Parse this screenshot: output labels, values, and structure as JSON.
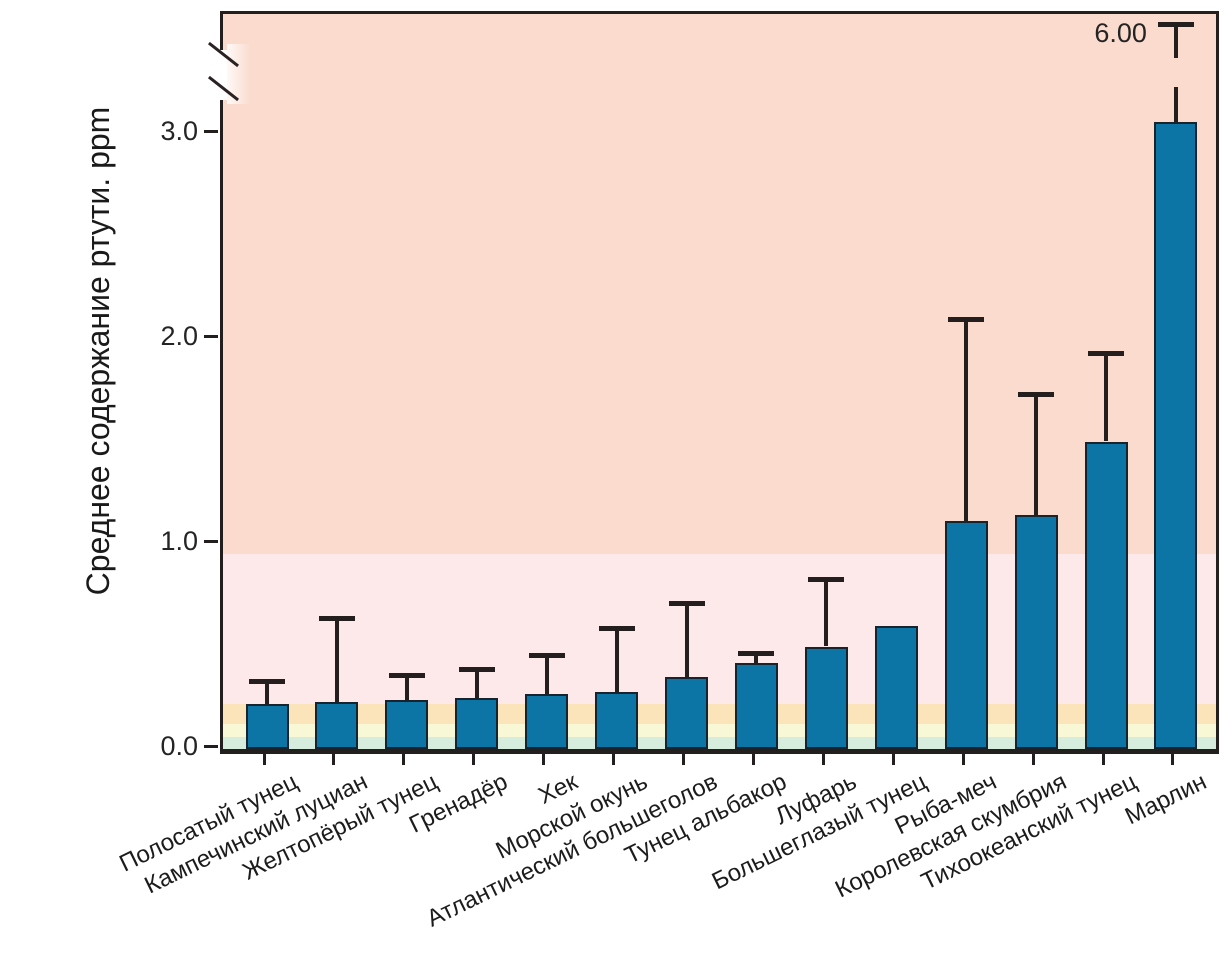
{
  "chart_data": {
    "type": "bar",
    "title": "",
    "xlabel": "",
    "ylabel": "Среднее содержание ртути. ppm",
    "unit": "ppm",
    "ylim": [
      0,
      3.3
    ],
    "ytick_values": [
      0.0,
      1.0,
      2.0,
      3.0
    ],
    "ytick_labels": [
      "0.0",
      "1.0",
      "2.0",
      "3.0"
    ],
    "grid": false,
    "legend": "none",
    "axis_break": {
      "present": true,
      "broken_series": "Марлин",
      "broken_series_index": 13,
      "top_value": 6.0,
      "top_value_label": "6.00"
    },
    "categories": [
      "Полосатый тунец",
      "Кампечинский луциан",
      "Желтопёрый тунец",
      "Гренадёр",
      "Хек",
      "Морской окунь",
      "Атлантический большеголов",
      "Тунец альбакор",
      "Луфарь",
      "Большеглазый тунец",
      "Рыба-меч",
      "Королевская скумбрия",
      "Тихоокеанский тунец",
      "Марлин"
    ],
    "values": [
      0.22,
      0.23,
      0.24,
      0.25,
      0.27,
      0.28,
      0.35,
      0.42,
      0.5,
      0.6,
      1.11,
      1.14,
      1.5,
      3.06
    ],
    "error_upper": [
      0.33,
      0.64,
      0.36,
      0.39,
      0.46,
      0.59,
      0.71,
      0.47,
      0.83,
      null,
      2.1,
      1.73,
      1.93,
      6.0
    ],
    "colors": {
      "bar_fill": "#0d75a6",
      "bar_edge": "#17242e",
      "error_bar": "#241e1e",
      "frame": "#241f1f",
      "text": "#1c1c1c"
    },
    "background_bands": [
      {
        "range_ppm": [
          0.0,
          0.06
        ],
        "color": "#d6ecdc"
      },
      {
        "range_ppm": [
          0.06,
          0.12
        ],
        "color": "#f8f7d6"
      },
      {
        "range_ppm": [
          0.12,
          0.22
        ],
        "color": "#fbe4ba"
      },
      {
        "range_ppm": [
          0.22,
          0.95
        ],
        "color": "#fde9ea"
      },
      {
        "range_ppm": [
          0.95,
          null
        ],
        "color": "#fadbcd"
      }
    ]
  }
}
